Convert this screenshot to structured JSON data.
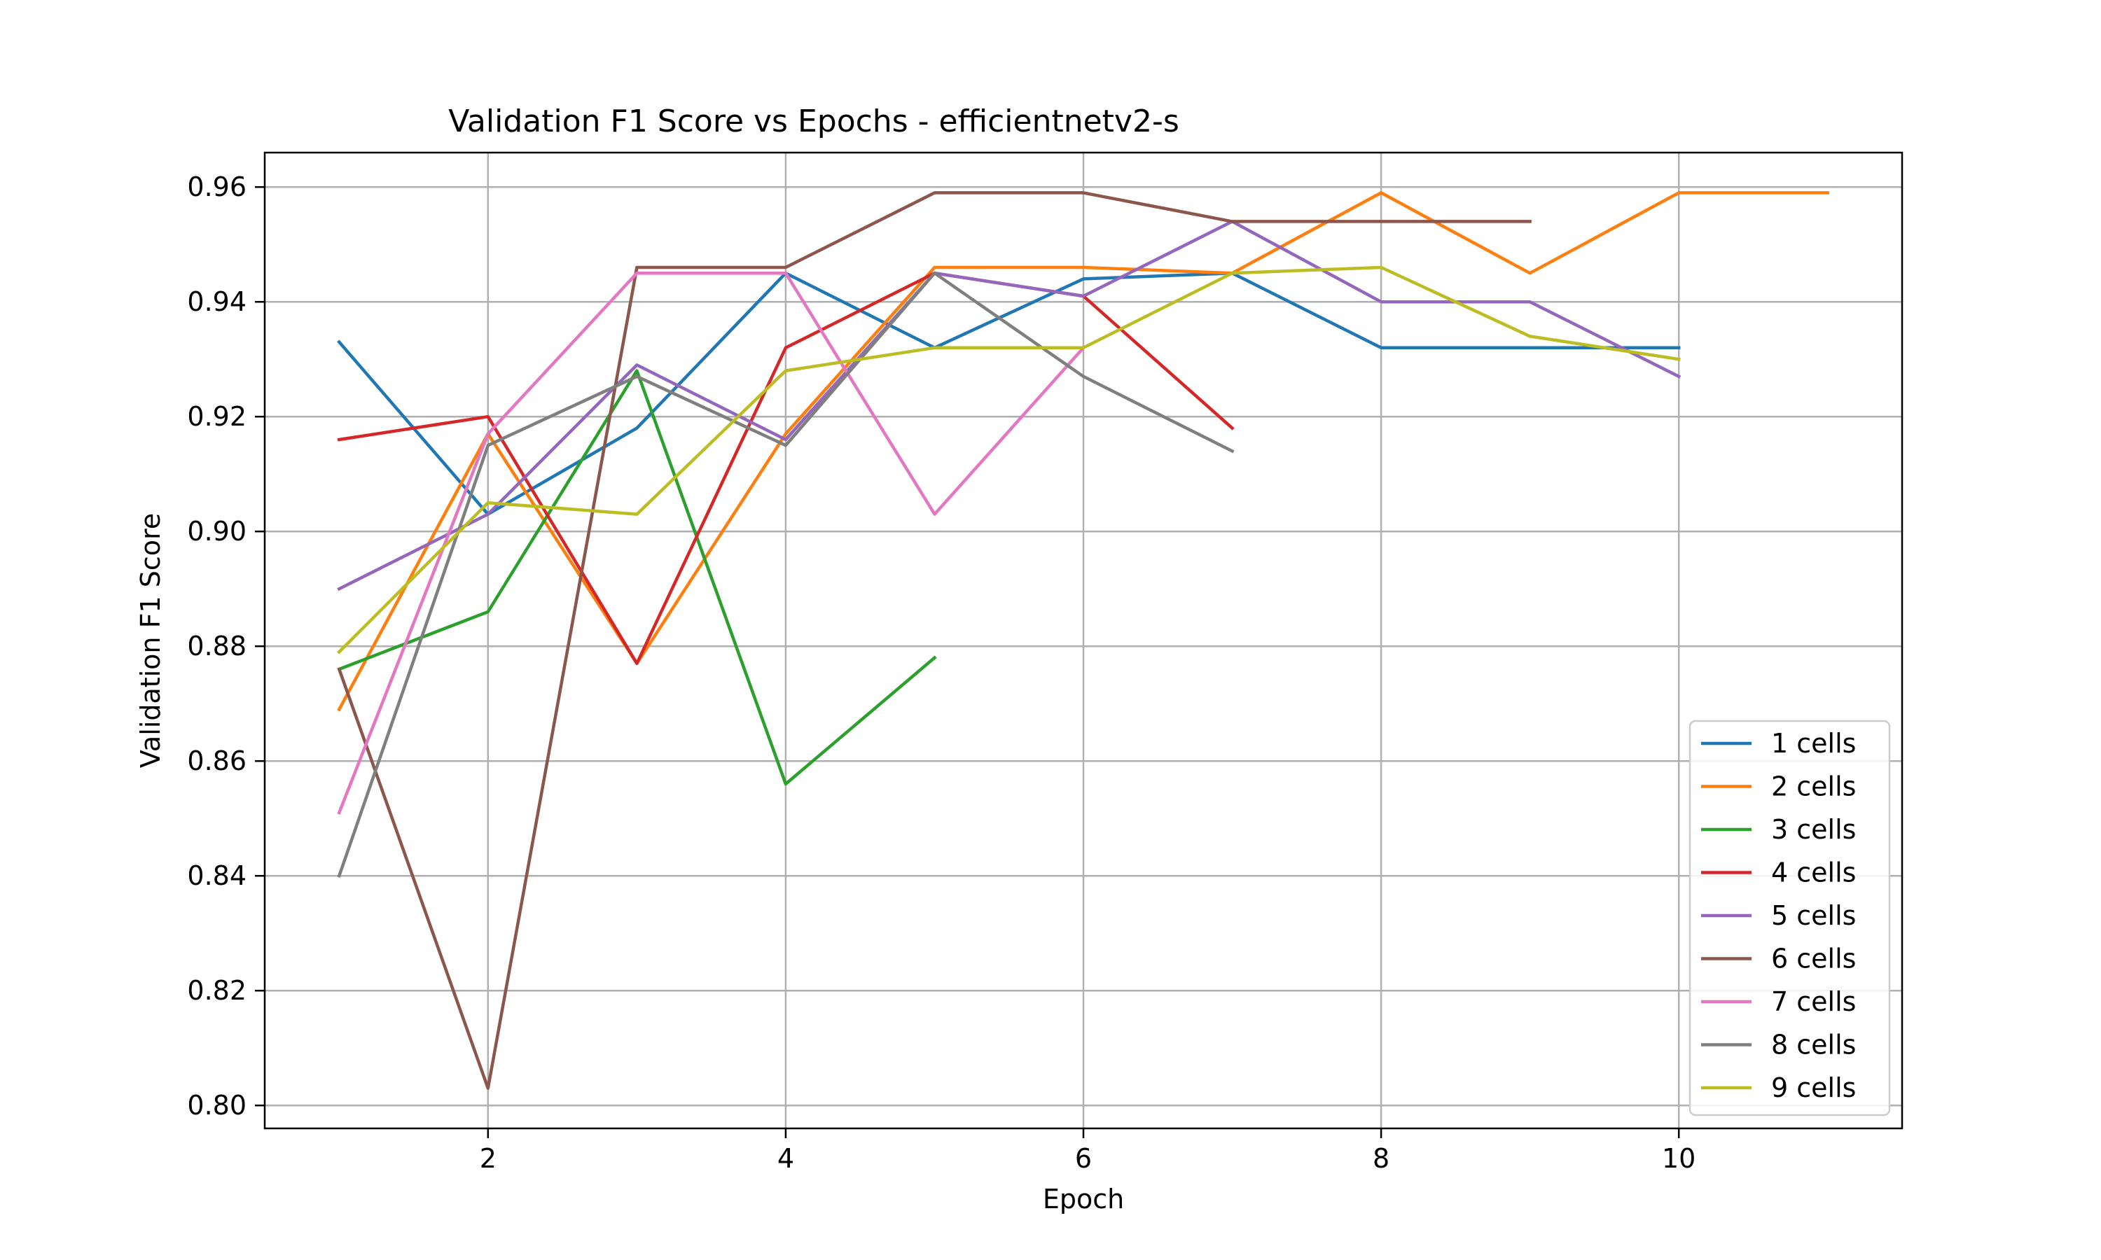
{
  "chart_data": {
    "type": "line",
    "title": "Validation F1 Score vs Epochs - efficientnetv2-s",
    "xlabel": "Epoch",
    "ylabel": "Validation F1 Score",
    "xlim": [
      0.5,
      11.5
    ],
    "ylim": [
      0.796,
      0.966
    ],
    "xticks": [
      2,
      4,
      6,
      8,
      10
    ],
    "yticks": [
      0.8,
      0.82,
      0.84,
      0.86,
      0.88,
      0.9,
      0.92,
      0.94,
      0.96
    ],
    "xtick_labels": [
      "2",
      "4",
      "6",
      "8",
      "10"
    ],
    "ytick_labels": [
      "0.80",
      "0.82",
      "0.84",
      "0.86",
      "0.88",
      "0.90",
      "0.92",
      "0.94",
      "0.96"
    ],
    "grid": true,
    "legend_position": "lower-right",
    "series": [
      {
        "name": "1 cells",
        "color": "#1f77b4",
        "x": [
          1,
          2,
          3,
          4,
          5,
          6,
          7,
          8,
          9,
          10
        ],
        "values": [
          0.933,
          0.903,
          0.918,
          0.945,
          0.932,
          0.944,
          0.945,
          0.932,
          0.932,
          0.932
        ]
      },
      {
        "name": "2 cells",
        "color": "#ff7f0e",
        "x": [
          1,
          2,
          3,
          4,
          5,
          6,
          7,
          8,
          9,
          10,
          11
        ],
        "values": [
          0.869,
          0.917,
          0.877,
          0.917,
          0.946,
          0.946,
          0.945,
          0.959,
          0.945,
          0.959,
          0.959
        ]
      },
      {
        "name": "3 cells",
        "color": "#2ca02c",
        "x": [
          1,
          2,
          3,
          4,
          5
        ],
        "values": [
          0.876,
          0.886,
          0.928,
          0.856,
          0.878
        ]
      },
      {
        "name": "4 cells",
        "color": "#d62728",
        "x": [
          1,
          2,
          3,
          4,
          5,
          6,
          7
        ],
        "values": [
          0.916,
          0.92,
          0.877,
          0.932,
          0.945,
          0.941,
          0.918
        ]
      },
      {
        "name": "5 cells",
        "color": "#9467bd",
        "x": [
          1,
          2,
          3,
          4,
          5,
          6,
          7,
          8,
          9,
          10
        ],
        "values": [
          0.89,
          0.903,
          0.929,
          0.916,
          0.945,
          0.941,
          0.954,
          0.94,
          0.94,
          0.927
        ]
      },
      {
        "name": "6 cells",
        "color": "#8c564b",
        "x": [
          1,
          2,
          3,
          4,
          5,
          6,
          7,
          8,
          9
        ],
        "values": [
          0.876,
          0.803,
          0.946,
          0.946,
          0.959,
          0.959,
          0.954,
          0.954,
          0.954
        ]
      },
      {
        "name": "7 cells",
        "color": "#e377c2",
        "x": [
          1,
          2,
          3,
          4,
          5,
          6
        ],
        "values": [
          0.851,
          0.917,
          0.945,
          0.945,
          0.903,
          0.932
        ]
      },
      {
        "name": "8 cells",
        "color": "#7f7f7f",
        "x": [
          1,
          2,
          3,
          4,
          5,
          6,
          7
        ],
        "values": [
          0.84,
          0.915,
          0.927,
          0.915,
          0.945,
          0.927,
          0.914
        ]
      },
      {
        "name": "9 cells",
        "color": "#bcbd22",
        "x": [
          1,
          2,
          3,
          4,
          5,
          6,
          7,
          8,
          9,
          10
        ],
        "values": [
          0.879,
          0.905,
          0.903,
          0.928,
          0.932,
          0.932,
          0.945,
          0.946,
          0.934,
          0.93
        ]
      }
    ]
  }
}
